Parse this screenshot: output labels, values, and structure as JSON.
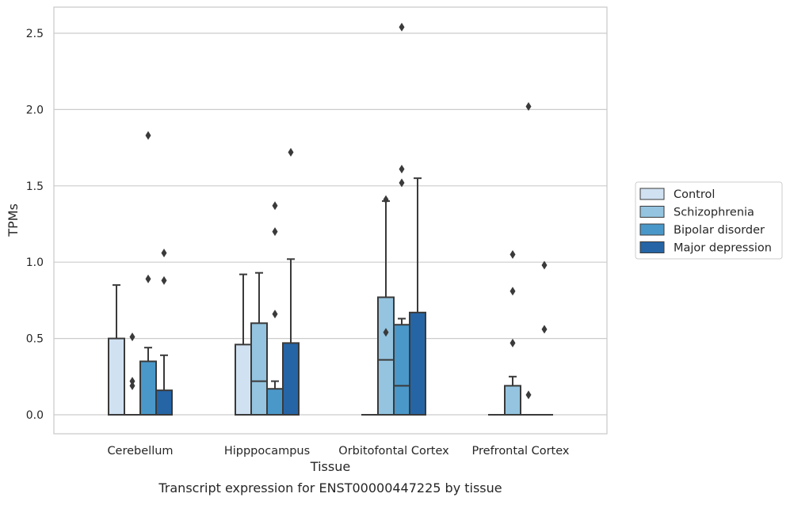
{
  "chart_data": {
    "type": "box",
    "title": "",
    "caption": "Transcript expression for ENST00000447225 by tissue",
    "xlabel": "Tissue",
    "ylabel": "TPMs",
    "ylim": [
      -0.12,
      2.68
    ],
    "yticks": [
      0.0,
      0.5,
      1.0,
      1.5,
      2.0,
      2.5
    ],
    "ytick_labels": [
      "0.0",
      "0.5",
      "1.0",
      "1.5",
      "2.0",
      "2.5"
    ],
    "grid": "horizontal",
    "legend_position": "right",
    "categories": [
      "Cerebellum",
      "Hipppocampus",
      "Orbitofontal Cortex",
      "Prefrontal Cortex"
    ],
    "series": [
      {
        "name": "Control",
        "color": "#d0e1f2",
        "boxes": [
          {
            "q1": 0.0,
            "median": 0.0,
            "q3": 0.5,
            "whisker_low": 0.0,
            "whisker_high": 0.85,
            "outliers": []
          },
          {
            "q1": 0.0,
            "median": 0.0,
            "q3": 0.46,
            "whisker_low": 0.0,
            "whisker_high": 0.92,
            "outliers": []
          },
          {
            "q1": 0.0,
            "median": 0.0,
            "q3": 0.0,
            "whisker_low": 0.0,
            "whisker_high": 0.0,
            "outliers": []
          },
          {
            "q1": 0.0,
            "median": 0.0,
            "q3": 0.0,
            "whisker_low": 0.0,
            "whisker_high": 0.0,
            "outliers": []
          }
        ]
      },
      {
        "name": "Schizophrenia",
        "color": "#94c4df",
        "boxes": [
          {
            "q1": 0.0,
            "median": 0.0,
            "q3": 0.0,
            "whisker_low": 0.0,
            "whisker_high": 0.0,
            "outliers": [
              0.51,
              0.22,
              0.19
            ]
          },
          {
            "q1": 0.0,
            "median": 0.22,
            "q3": 0.6,
            "whisker_low": 0.0,
            "whisker_high": 0.93,
            "outliers": []
          },
          {
            "q1": 0.0,
            "median": 0.36,
            "q3": 0.77,
            "whisker_low": 0.0,
            "whisker_high": 1.4,
            "outliers": [
              1.41,
              0.54
            ]
          },
          {
            "q1": 0.0,
            "median": 0.0,
            "q3": 0.19,
            "whisker_low": 0.0,
            "whisker_high": 0.25,
            "outliers": [
              1.05,
              0.81,
              0.47
            ]
          }
        ]
      },
      {
        "name": "Bipolar disorder",
        "color": "#4a98c9",
        "boxes": [
          {
            "q1": 0.0,
            "median": 0.0,
            "q3": 0.35,
            "whisker_low": 0.0,
            "whisker_high": 0.44,
            "outliers": [
              1.83,
              0.89
            ]
          },
          {
            "q1": 0.0,
            "median": 0.0,
            "q3": 0.17,
            "whisker_low": 0.0,
            "whisker_high": 0.22,
            "outliers": [
              1.37,
              1.2,
              0.66
            ]
          },
          {
            "q1": 0.0,
            "median": 0.19,
            "q3": 0.59,
            "whisker_low": 0.0,
            "whisker_high": 0.63,
            "outliers": [
              2.54,
              1.61,
              1.52
            ]
          },
          {
            "q1": 0.0,
            "median": 0.0,
            "q3": 0.0,
            "whisker_low": 0.0,
            "whisker_high": 0.0,
            "outliers": [
              2.02,
              0.13
            ]
          }
        ]
      },
      {
        "name": "Major depression",
        "color": "#2565a6",
        "boxes": [
          {
            "q1": 0.0,
            "median": 0.0,
            "q3": 0.16,
            "whisker_low": 0.0,
            "whisker_high": 0.39,
            "outliers": [
              1.06,
              0.88
            ]
          },
          {
            "q1": 0.0,
            "median": 0.0,
            "q3": 0.47,
            "whisker_low": 0.0,
            "whisker_high": 1.02,
            "outliers": [
              1.72
            ]
          },
          {
            "q1": 0.0,
            "median": 0.0,
            "q3": 0.67,
            "whisker_low": 0.0,
            "whisker_high": 1.55,
            "outliers": []
          },
          {
            "q1": 0.0,
            "median": 0.0,
            "q3": 0.0,
            "whisker_low": 0.0,
            "whisker_high": 0.0,
            "outliers": [
              0.98,
              0.56
            ]
          }
        ]
      }
    ]
  }
}
